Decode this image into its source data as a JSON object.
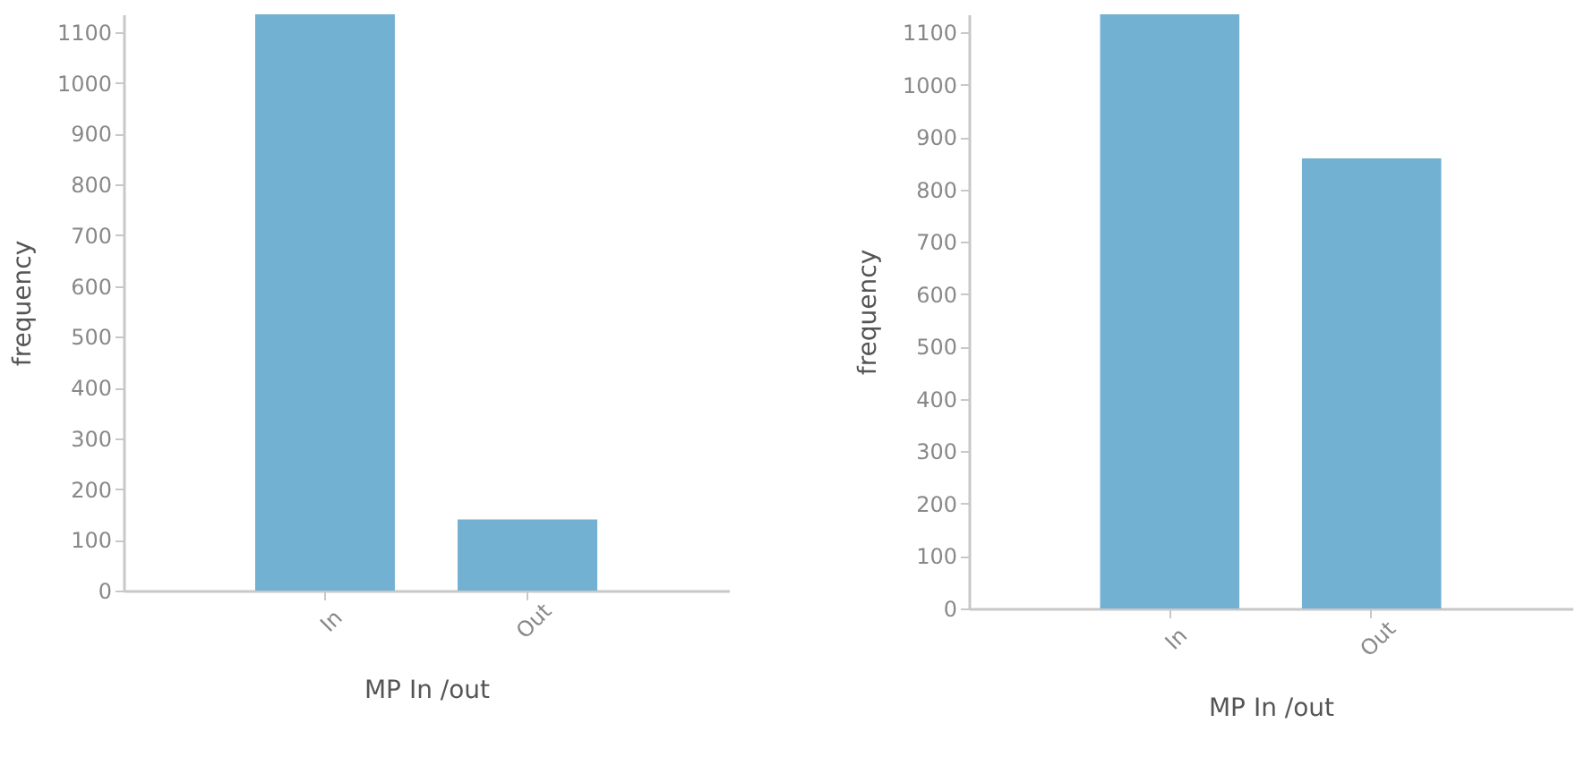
{
  "chart_data": [
    {
      "type": "bar",
      "categories": [
        "In",
        "Out"
      ],
      "values": [
        1135,
        140
      ],
      "color": "#72b1d2",
      "xlabel": "MP In /out",
      "ylabel": "frequency",
      "ylim": [
        0,
        1135
      ],
      "yticks": [
        0,
        100,
        200,
        300,
        400,
        500,
        600,
        700,
        800,
        900,
        1000,
        1100
      ]
    },
    {
      "type": "bar",
      "categories": [
        "In",
        "Out"
      ],
      "values": [
        1135,
        860
      ],
      "color": "#72b1d2",
      "xlabel": "MP In /out",
      "ylabel": "frequency",
      "ylim": [
        0,
        1135
      ],
      "yticks": [
        0,
        100,
        200,
        300,
        400,
        500,
        600,
        700,
        800,
        900,
        1000,
        1100
      ]
    }
  ]
}
